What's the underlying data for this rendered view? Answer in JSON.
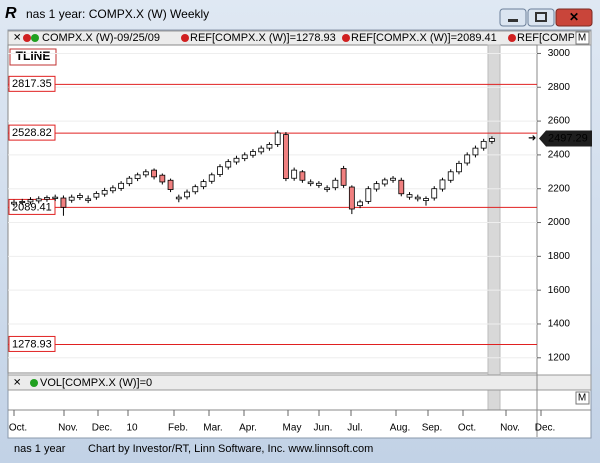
{
  "window": {
    "title": "nas 1 year: COMPX.X (W) Weekly"
  },
  "legend": [
    "COMPX.X (W)-09/25/09",
    "REF[COMPX.X (W)]=1278.93",
    "REF[COMPX.X (W)]=2089.41",
    "REF[COMPX.X ("
  ],
  "panel_button": "M",
  "chart_data": {
    "type": "candlestick",
    "tool_label": "TLINE",
    "open": [
      2110,
      2118,
      2122,
      2128,
      2138,
      2142,
      2145,
      2132,
      2148,
      2130,
      2150,
      2168,
      2188,
      2202,
      2230,
      2260,
      2282,
      2310,
      2280,
      2250,
      2140,
      2152,
      2182,
      2212,
      2244,
      2284,
      2328,
      2358,
      2378,
      2398,
      2418,
      2440,
      2462,
      2520,
      2262,
      2300,
      2230,
      2220,
      2195,
      2206,
      2320,
      2210,
      2100,
      2125,
      2198,
      2228,
      2250,
      2250,
      2150,
      2140,
      2130,
      2145,
      2198,
      2250,
      2300,
      2352,
      2400,
      2440,
      2480
    ],
    "high": [
      2135,
      2140,
      2150,
      2155,
      2160,
      2165,
      2160,
      2165,
      2175,
      2160,
      2185,
      2205,
      2220,
      2245,
      2275,
      2295,
      2315,
      2320,
      2290,
      2260,
      2165,
      2195,
      2225,
      2255,
      2295,
      2345,
      2375,
      2395,
      2415,
      2435,
      2455,
      2475,
      2545,
      2535,
      2325,
      2310,
      2255,
      2245,
      2220,
      2265,
      2335,
      2220,
      2135,
      2215,
      2245,
      2265,
      2275,
      2265,
      2180,
      2165,
      2155,
      2215,
      2265,
      2315,
      2365,
      2415,
      2455,
      2495,
      2510
    ],
    "low": [
      2095,
      2103,
      2107,
      2113,
      2123,
      2127,
      2040,
      2117,
      2133,
      2115,
      2135,
      2153,
      2173,
      2187,
      2215,
      2245,
      2267,
      2255,
      2225,
      2180,
      2120,
      2137,
      2167,
      2197,
      2229,
      2269,
      2313,
      2343,
      2363,
      2383,
      2403,
      2425,
      2447,
      2245,
      2247,
      2235,
      2215,
      2205,
      2180,
      2191,
      2205,
      2050,
      2085,
      2110,
      2183,
      2213,
      2235,
      2155,
      2135,
      2125,
      2100,
      2130,
      2183,
      2235,
      2285,
      2337,
      2385,
      2425,
      2465
    ],
    "close": [
      2120,
      2125,
      2135,
      2140,
      2148,
      2150,
      2090,
      2150,
      2160,
      2140,
      2172,
      2190,
      2205,
      2232,
      2262,
      2282,
      2300,
      2270,
      2240,
      2195,
      2150,
      2180,
      2212,
      2242,
      2282,
      2330,
      2360,
      2380,
      2400,
      2420,
      2440,
      2462,
      2530,
      2260,
      2310,
      2250,
      2240,
      2232,
      2205,
      2250,
      2220,
      2080,
      2122,
      2200,
      2230,
      2252,
      2262,
      2170,
      2165,
      2150,
      2142,
      2200,
      2252,
      2300,
      2350,
      2400,
      2440,
      2480,
      2497.29
    ],
    "up_color": "#ffffff",
    "down_color": "#f08080",
    "ref_lines": [
      2817.35,
      2528.82,
      2089.41,
      1278.93
    ],
    "ref_color": "#e02020",
    "ylim": [
      1110,
      3050
    ],
    "yticks": [
      1200,
      1400,
      1600,
      1800,
      2000,
      2200,
      2400,
      2600,
      2800,
      3000
    ],
    "xtick_labels": [
      "Oct.",
      "Nov.",
      "Dec.",
      "10",
      "Feb.",
      "Mar.",
      "Apr.",
      "May",
      "Jun.",
      "Jul.",
      "Aug.",
      "Sep.",
      "Oct.",
      "Nov.",
      "Dec."
    ]
  },
  "volume_panel": {
    "legend": "VOL[COMPX.X (W)]=0"
  },
  "status": {
    "left": "nas 1 year",
    "credit": "Chart by Investor/RT, Linn Software, Inc. www.linnsoft.com"
  }
}
